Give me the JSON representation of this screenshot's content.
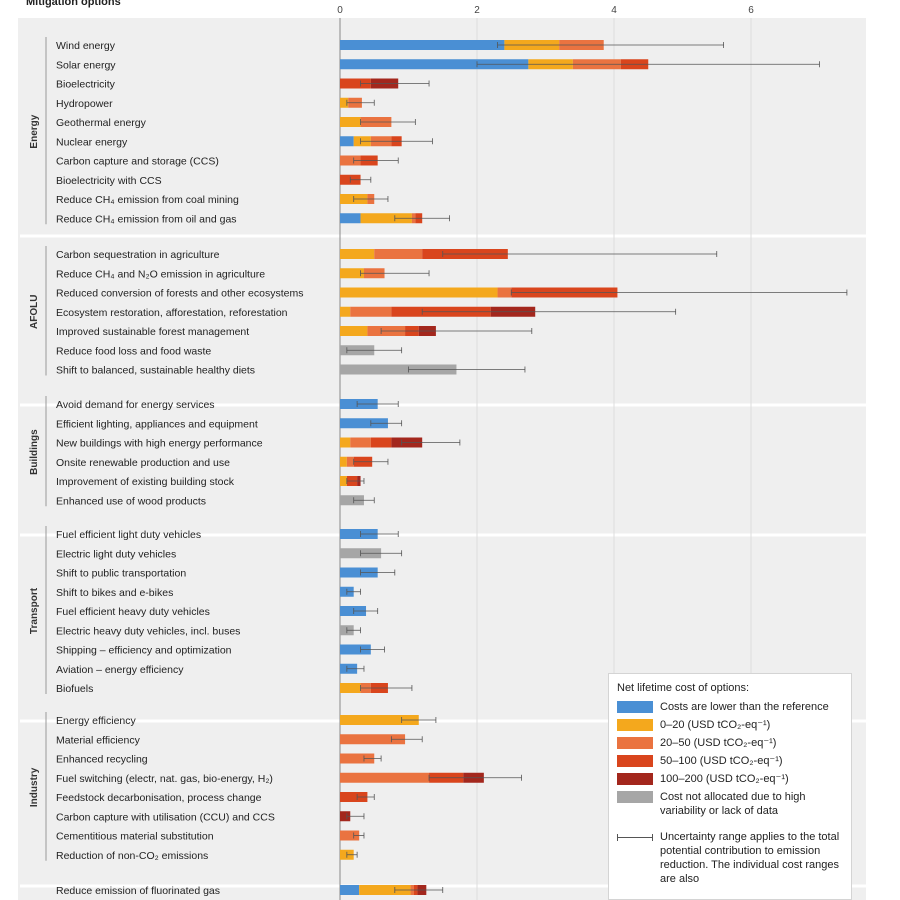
{
  "header": "Mitigation options",
  "chart_data": {
    "type": "bar",
    "orientation": "horizontal",
    "stacked": true,
    "xlim": [
      0,
      7.5
    ],
    "x_ticks": [
      "0",
      "2",
      "4",
      "6"
    ],
    "x_tick_values": [
      0,
      2,
      4,
      6
    ],
    "grid": true,
    "legend_position": "bottom-right",
    "cost_categories": [
      {
        "key": "lower",
        "label": "Costs are lower than the reference",
        "color": "#4a8fd4"
      },
      {
        "key": "c0_20",
        "label": "0–20 (USD tCO₂-eq⁻¹)",
        "color": "#f4a81d"
      },
      {
        "key": "c20_50",
        "label": "20–50 (USD tCO₂-eq⁻¹)",
        "color": "#ea7340"
      },
      {
        "key": "c50_100",
        "label": "50–100 (USD tCO₂-eq⁻¹)",
        "color": "#d9451d"
      },
      {
        "key": "c100_200",
        "label": "100–200 (USD tCO₂-eq⁻¹)",
        "color": "#a3271d"
      },
      {
        "key": "na",
        "label": "Cost not allocated due to high variability or lack of data",
        "color": "#a6a6a6"
      }
    ],
    "groups": [
      {
        "name": "Energy",
        "options": [
          {
            "label": "Wind energy",
            "segments": [
              2.4,
              0.8,
              0.65,
              0,
              0,
              0
            ],
            "range": [
              2.3,
              5.6
            ]
          },
          {
            "label": "Solar energy",
            "segments": [
              2.75,
              0.65,
              0.7,
              0.4,
              0,
              0
            ],
            "range": [
              2.0,
              7.0
            ]
          },
          {
            "label": "Bioelectricity",
            "segments": [
              0,
              0,
              0,
              0.45,
              0.4,
              0
            ],
            "range": [
              0.3,
              1.3
            ]
          },
          {
            "label": "Hydropower",
            "segments": [
              0,
              0.12,
              0.2,
              0,
              0,
              0
            ],
            "range": [
              0.1,
              0.5
            ]
          },
          {
            "label": "Geothermal energy",
            "segments": [
              0,
              0.3,
              0.45,
              0,
              0,
              0
            ],
            "range": [
              0.3,
              1.1
            ]
          },
          {
            "label": "Nuclear energy",
            "segments": [
              0.2,
              0.25,
              0.3,
              0.15,
              0,
              0
            ],
            "range": [
              0.3,
              1.35
            ]
          },
          {
            "label": "Carbon capture and storage (CCS)",
            "segments": [
              0,
              0,
              0.3,
              0.25,
              0,
              0
            ],
            "range": [
              0.2,
              0.85
            ]
          },
          {
            "label": "Bioelectricity with CCS",
            "segments": [
              0,
              0,
              0,
              0.3,
              0,
              0
            ],
            "range": [
              0.15,
              0.45
            ]
          },
          {
            "label": "Reduce CH₄ emission from coal mining",
            "segments": [
              0,
              0.4,
              0.1,
              0,
              0,
              0
            ],
            "range": [
              0.2,
              0.7
            ]
          },
          {
            "label": "Reduce CH₄ emission from oil and gas",
            "segments": [
              0.3,
              0.75,
              0.05,
              0.1,
              0,
              0
            ],
            "range": [
              0.8,
              1.6
            ]
          }
        ]
      },
      {
        "name": "AFOLU",
        "options": [
          {
            "label": "Carbon sequestration in agriculture",
            "segments": [
              0,
              0.5,
              0.7,
              1.25,
              0,
              0
            ],
            "range": [
              1.5,
              5.5
            ]
          },
          {
            "label": "Reduce CH₄ and N₂O emission in agriculture",
            "segments": [
              0,
              0.35,
              0.3,
              0,
              0,
              0
            ],
            "range": [
              0.3,
              1.3
            ]
          },
          {
            "label": "Reduced conversion of forests and other ecosystems",
            "segments": [
              0,
              2.3,
              0.2,
              1.55,
              0,
              0
            ],
            "range": [
              2.5,
              7.4
            ]
          },
          {
            "label": "Ecosystem restoration, afforestation, reforestation",
            "segments": [
              0,
              0.15,
              0.6,
              1.45,
              0.65,
              0
            ],
            "range": [
              1.2,
              4.9
            ]
          },
          {
            "label": "Improved sustainable forest management",
            "segments": [
              0,
              0.4,
              0.55,
              0.2,
              0.25,
              0
            ],
            "range": [
              0.6,
              2.8
            ]
          },
          {
            "label": "Reduce food loss and food waste",
            "segments": [
              0,
              0,
              0,
              0,
              0,
              0.5
            ],
            "range": [
              0.1,
              0.9
            ]
          },
          {
            "label": "Shift to balanced, sustainable healthy diets",
            "segments": [
              0,
              0,
              0,
              0,
              0,
              1.7
            ],
            "range": [
              1.0,
              2.7
            ]
          }
        ]
      },
      {
        "name": "Buildings",
        "options": [
          {
            "label": "Avoid demand for energy services",
            "segments": [
              0.55,
              0,
              0,
              0,
              0,
              0
            ],
            "range": [
              0.25,
              0.85
            ]
          },
          {
            "label": "Efficient lighting, appliances and equipment",
            "segments": [
              0.7,
              0,
              0,
              0,
              0,
              0
            ],
            "range": [
              0.45,
              0.9
            ]
          },
          {
            "label": "New buildings with high energy performance",
            "segments": [
              0,
              0.15,
              0.3,
              0.3,
              0.45,
              0
            ],
            "range": [
              0.9,
              1.75
            ]
          },
          {
            "label": "Onsite renewable production and use",
            "segments": [
              0,
              0.1,
              0.1,
              0.27,
              0,
              0
            ],
            "range": [
              0.2,
              0.7
            ]
          },
          {
            "label": "Improvement of existing building stock",
            "segments": [
              0,
              0.1,
              0,
              0.15,
              0.05,
              0
            ],
            "range": [
              0.1,
              0.35
            ]
          },
          {
            "label": "Enhanced use of wood products",
            "segments": [
              0,
              0,
              0,
              0,
              0,
              0.35
            ],
            "range": [
              0.2,
              0.5
            ]
          }
        ]
      },
      {
        "name": "Transport",
        "options": [
          {
            "label": "Fuel efficient light duty vehicles",
            "segments": [
              0.55,
              0,
              0,
              0,
              0,
              0
            ],
            "range": [
              0.3,
              0.85
            ]
          },
          {
            "label": "Electric light duty vehicles",
            "segments": [
              0,
              0,
              0,
              0,
              0,
              0.6
            ],
            "range": [
              0.3,
              0.9
            ]
          },
          {
            "label": "Shift to public transportation",
            "segments": [
              0.55,
              0,
              0,
              0,
              0,
              0
            ],
            "range": [
              0.3,
              0.8
            ]
          },
          {
            "label": "Shift to bikes and e-bikes",
            "segments": [
              0.2,
              0,
              0,
              0,
              0,
              0
            ],
            "range": [
              0.1,
              0.3
            ]
          },
          {
            "label": "Fuel efficient heavy duty vehicles",
            "segments": [
              0.38,
              0,
              0,
              0,
              0,
              0
            ],
            "range": [
              0.2,
              0.55
            ]
          },
          {
            "label": "Electric heavy duty vehicles, incl. buses",
            "segments": [
              0,
              0,
              0,
              0,
              0,
              0.2
            ],
            "range": [
              0.1,
              0.3
            ]
          },
          {
            "label": "Shipping – efficiency and optimization",
            "segments": [
              0.45,
              0,
              0,
              0,
              0,
              0
            ],
            "range": [
              0.3,
              0.65
            ]
          },
          {
            "label": "Aviation – energy efficiency",
            "segments": [
              0.25,
              0,
              0,
              0,
              0,
              0
            ],
            "range": [
              0.1,
              0.35
            ]
          },
          {
            "label": "Biofuels",
            "segments": [
              0,
              0.3,
              0.15,
              0.25,
              0,
              0
            ],
            "range": [
              0.3,
              1.05
            ]
          }
        ]
      },
      {
        "name": "Industry",
        "options": [
          {
            "label": "Energy efficiency",
            "segments": [
              0,
              1.15,
              0,
              0,
              0,
              0
            ],
            "range": [
              0.9,
              1.4
            ]
          },
          {
            "label": "Material efficiency",
            "segments": [
              0,
              0,
              0.95,
              0,
              0,
              0
            ],
            "range": [
              0.75,
              1.2
            ]
          },
          {
            "label": "Enhanced recycling",
            "segments": [
              0,
              0,
              0.5,
              0,
              0,
              0
            ],
            "range": [
              0.35,
              0.6
            ]
          },
          {
            "label": "Fuel switching (electr, nat. gas, bio-energy, H₂)",
            "segments": [
              0,
              0,
              1.3,
              0.5,
              0.3,
              0
            ],
            "range": [
              1.3,
              2.65
            ]
          },
          {
            "label": "Feedstock decarbonisation, process change",
            "segments": [
              0,
              0,
              0,
              0.4,
              0,
              0
            ],
            "range": [
              0.25,
              0.5
            ]
          },
          {
            "label": "Carbon capture with utilisation (CCU) and CCS",
            "segments": [
              0,
              0,
              0,
              0,
              0.15,
              0
            ],
            "range": [
              0.1,
              0.35
            ]
          },
          {
            "label": "Cementitious material substitution",
            "segments": [
              0,
              0,
              0.28,
              0,
              0,
              0
            ],
            "range": [
              0.2,
              0.35
            ]
          },
          {
            "label": "Reduction of non-CO₂ emissions",
            "segments": [
              0,
              0.2,
              0,
              0,
              0,
              0
            ],
            "range": [
              0.1,
              0.25
            ]
          }
        ]
      },
      {
        "name": "",
        "options": [
          {
            "label": "Reduce emission of fluorinated gas",
            "segments": [
              0.28,
              0.75,
              0.05,
              0.05,
              0.13,
              0
            ],
            "range": [
              0.8,
              1.5
            ]
          }
        ]
      }
    ]
  },
  "legend": {
    "title": "Net lifetime cost of options:",
    "uncertainty_text": "Uncertainty range applies to the total potential contribution to emission reduction. The individual cost ranges are also"
  }
}
